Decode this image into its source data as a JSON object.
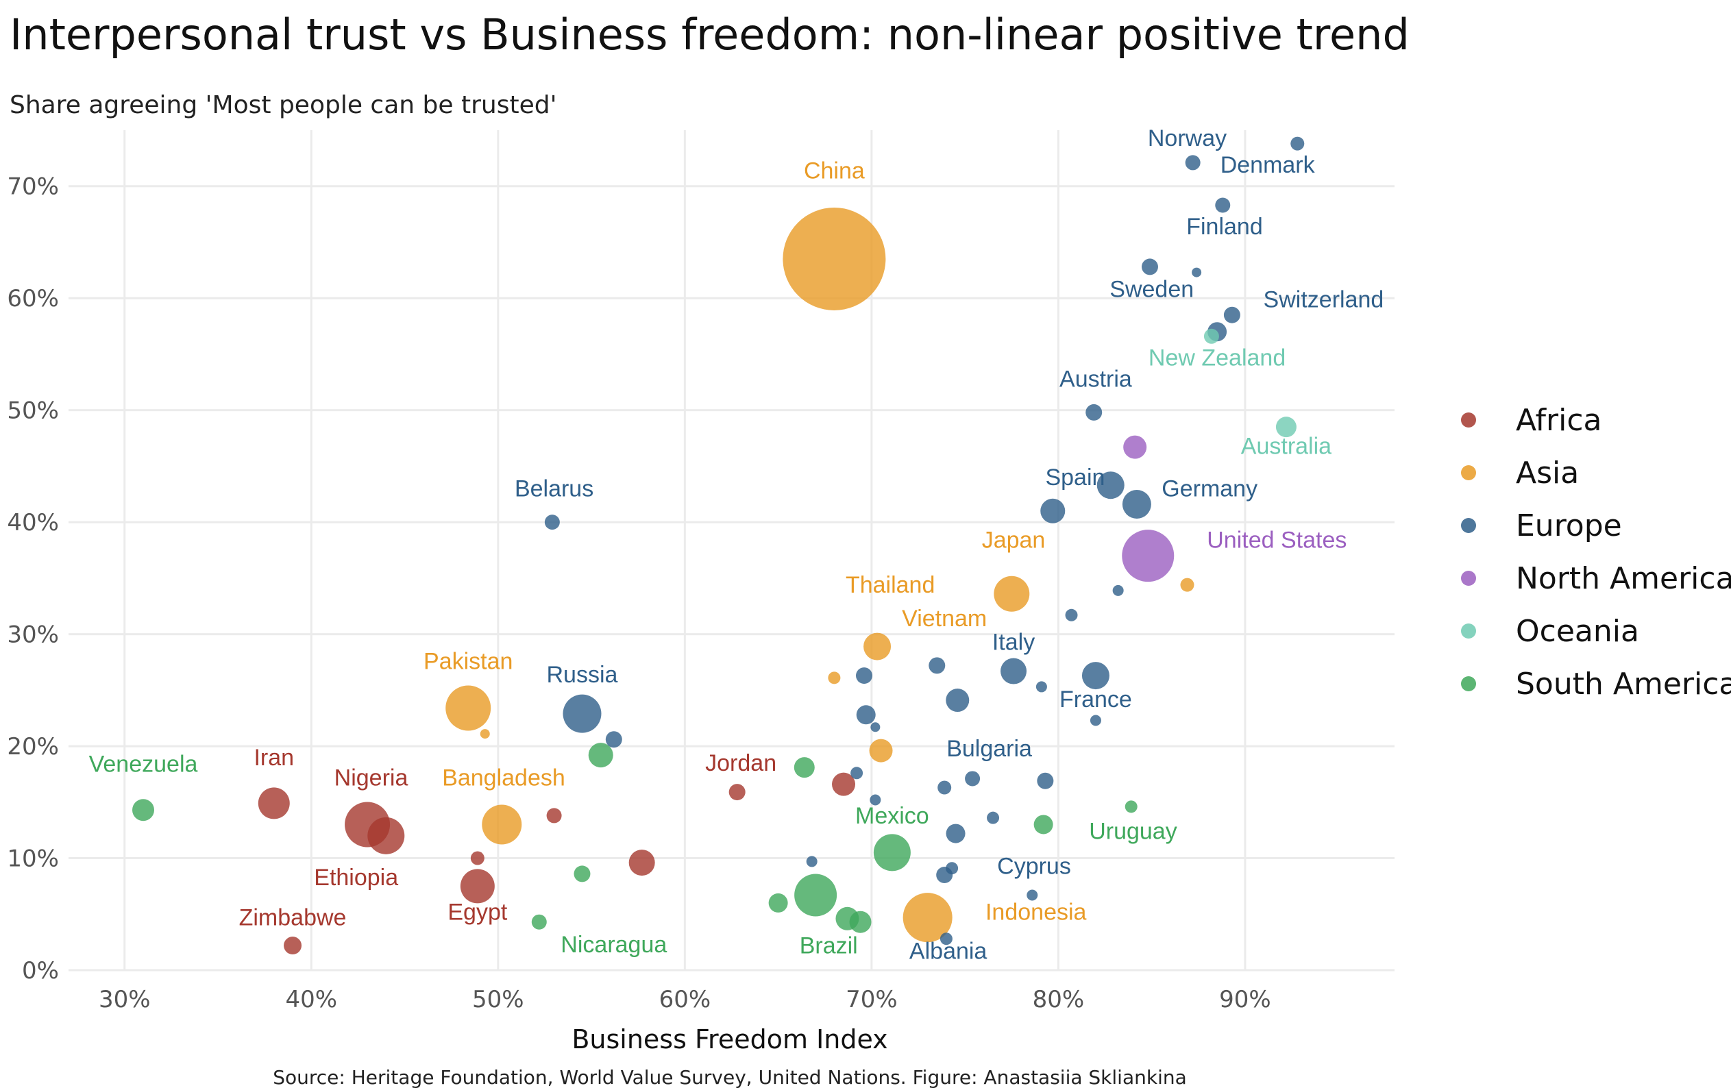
{
  "chart_data": {
    "type": "scatter",
    "title": "Interpersonal trust vs Business freedom: non-linear positive trend",
    "subtitle": "Share agreeing 'Most people can be trusted'",
    "xlabel": "Business Freedom Index",
    "ylabel": "",
    "caption": "Source: Heritage Foundation, World Value Survey, United Nations. Figure: Anastasiia Skliankina",
    "xlim": [
      27,
      98
    ],
    "ylim": [
      0,
      75
    ],
    "x_ticks": [
      30,
      40,
      50,
      60,
      70,
      80,
      90
    ],
    "y_ticks": [
      0,
      10,
      20,
      30,
      40,
      50,
      60,
      70
    ],
    "x_tick_labels": [
      "30%",
      "40%",
      "50%",
      "60%",
      "70%",
      "80%",
      "90%"
    ],
    "y_tick_labels": [
      "0%",
      "10%",
      "20%",
      "30%",
      "40%",
      "50%",
      "60%",
      "70%"
    ],
    "grid": true,
    "size_encoding": "population",
    "legend_position": "right",
    "legend": [
      {
        "name": "Africa",
        "color": "#a5382e"
      },
      {
        "name": "Asia",
        "color": "#e99b26"
      },
      {
        "name": "Europe",
        "color": "#2f5f8a"
      },
      {
        "name": "North America",
        "color": "#9b5fc0"
      },
      {
        "name": "Oceania",
        "color": "#6fcab1"
      },
      {
        "name": "South America",
        "color": "#3fa85b"
      }
    ],
    "points": [
      {
        "label": "China",
        "region": "Asia",
        "x": 68.0,
        "y": 63.5,
        "r": 75
      },
      {
        "label": "Norway",
        "region": "Europe",
        "x": 87.2,
        "y": 72.1,
        "r": 11
      },
      {
        "label": "",
        "region": "Europe",
        "x": 92.8,
        "y": 73.8,
        "r": 10
      },
      {
        "label": "Denmark",
        "region": "Europe",
        "x": 88.8,
        "y": 68.3,
        "r": 11
      },
      {
        "label": "Finland",
        "region": "Europe",
        "x": 84.9,
        "y": 62.8,
        "r": 12
      },
      {
        "label": "",
        "region": "Europe",
        "x": 87.4,
        "y": 62.3,
        "r": 7
      },
      {
        "label": "Switzerland",
        "region": "Europe",
        "x": 89.3,
        "y": 58.5,
        "r": 12
      },
      {
        "label": "Sweden",
        "region": "Europe",
        "x": 88.5,
        "y": 57.0,
        "r": 14
      },
      {
        "label": "New Zealand",
        "region": "Oceania",
        "x": 88.2,
        "y": 56.6,
        "r": 11
      },
      {
        "label": "Austria",
        "region": "Europe",
        "x": 81.9,
        "y": 49.8,
        "r": 12
      },
      {
        "label": "Australia",
        "region": "Oceania",
        "x": 92.2,
        "y": 48.5,
        "r": 15
      },
      {
        "label": "",
        "region": "North America",
        "x": 84.1,
        "y": 46.7,
        "r": 17
      },
      {
        "label": "Spain",
        "region": "Europe",
        "x": 82.8,
        "y": 43.3,
        "r": 20
      },
      {
        "label": "Germany",
        "region": "Europe",
        "x": 84.2,
        "y": 41.6,
        "r": 21
      },
      {
        "label": "",
        "region": "Europe",
        "x": 79.7,
        "y": 41.0,
        "r": 18
      },
      {
        "label": "Belarus",
        "region": "Europe",
        "x": 52.9,
        "y": 40.0,
        "r": 11
      },
      {
        "label": "United States",
        "region": "North America",
        "x": 84.8,
        "y": 37.0,
        "r": 38
      },
      {
        "label": "Japan",
        "region": "Asia",
        "x": 77.5,
        "y": 33.6,
        "r": 26
      },
      {
        "label": "",
        "region": "Asia",
        "x": 86.9,
        "y": 34.4,
        "r": 10
      },
      {
        "label": "",
        "region": "Europe",
        "x": 83.2,
        "y": 33.9,
        "r": 8
      },
      {
        "label": "",
        "region": "Europe",
        "x": 80.7,
        "y": 31.7,
        "r": 9
      },
      {
        "label": "Thailand",
        "region": "Asia",
        "x": 70.3,
        "y": 28.9,
        "r": 20
      },
      {
        "label": "Italy",
        "region": "Europe",
        "x": 77.6,
        "y": 26.7,
        "r": 19
      },
      {
        "label": "France",
        "region": "Europe",
        "x": 82.0,
        "y": 26.3,
        "r": 20
      },
      {
        "label": "",
        "region": "Europe",
        "x": 73.5,
        "y": 27.2,
        "r": 12
      },
      {
        "label": "",
        "region": "Europe",
        "x": 69.6,
        "y": 26.3,
        "r": 12
      },
      {
        "label": "",
        "region": "Asia",
        "x": 68.0,
        "y": 26.1,
        "r": 9
      },
      {
        "label": "",
        "region": "Europe",
        "x": 79.1,
        "y": 25.3,
        "r": 8
      },
      {
        "label": "",
        "region": "Europe",
        "x": 74.6,
        "y": 24.1,
        "r": 17
      },
      {
        "label": "Pakistan",
        "region": "Asia",
        "x": 48.4,
        "y": 23.4,
        "r": 33
      },
      {
        "label": "Russia",
        "region": "Europe",
        "x": 54.5,
        "y": 22.9,
        "r": 28
      },
      {
        "label": "",
        "region": "Asia",
        "x": 49.3,
        "y": 21.1,
        "r": 7
      },
      {
        "label": "",
        "region": "Europe",
        "x": 69.7,
        "y": 22.8,
        "r": 14
      },
      {
        "label": "",
        "region": "Europe",
        "x": 70.2,
        "y": 21.7,
        "r": 7
      },
      {
        "label": "",
        "region": "Europe",
        "x": 82.0,
        "y": 22.3,
        "r": 8
      },
      {
        "label": "",
        "region": "Europe",
        "x": 56.2,
        "y": 20.6,
        "r": 12
      },
      {
        "label": "",
        "region": "South America",
        "x": 55.5,
        "y": 19.2,
        "r": 18
      },
      {
        "label": "",
        "region": "Asia",
        "x": 70.5,
        "y": 19.6,
        "r": 17
      },
      {
        "label": "Vietnam",
        "region": "Asia",
        "x": 70.3,
        "y": 28.9,
        "r": 0
      },
      {
        "label": "Bulgaria",
        "region": "Europe",
        "x": 75.4,
        "y": 17.1,
        "r": 11
      },
      {
        "label": "",
        "region": "Europe",
        "x": 79.3,
        "y": 16.9,
        "r": 12
      },
      {
        "label": "",
        "region": "Europe",
        "x": 69.2,
        "y": 17.6,
        "r": 9
      },
      {
        "label": "",
        "region": "South America",
        "x": 66.4,
        "y": 18.1,
        "r": 15
      },
      {
        "label": "Jordan",
        "region": "Africa",
        "x": 62.8,
        "y": 15.9,
        "r": 12
      },
      {
        "label": "",
        "region": "Africa",
        "x": 68.5,
        "y": 16.6,
        "r": 17
      },
      {
        "label": "",
        "region": "Europe",
        "x": 73.9,
        "y": 16.3,
        "r": 10
      },
      {
        "label": "",
        "region": "Europe",
        "x": 70.2,
        "y": 15.2,
        "r": 8
      },
      {
        "label": "Venezuela",
        "region": "South America",
        "x": 31.0,
        "y": 14.3,
        "r": 16
      },
      {
        "label": "Iran",
        "region": "Africa",
        "x": 38.0,
        "y": 14.9,
        "r": 23
      },
      {
        "label": "Nigeria",
        "region": "Africa",
        "x": 43.0,
        "y": 13.0,
        "r": 33
      },
      {
        "label": "Ethiopia",
        "region": "Africa",
        "x": 44.0,
        "y": 12.0,
        "r": 27
      },
      {
        "label": "Bangladesh",
        "region": "Asia",
        "x": 50.2,
        "y": 13.0,
        "r": 29
      },
      {
        "label": "",
        "region": "Africa",
        "x": 53.0,
        "y": 13.8,
        "r": 11
      },
      {
        "label": "",
        "region": "South America",
        "x": 83.9,
        "y": 14.6,
        "r": 9
      },
      {
        "label": "",
        "region": "Europe",
        "x": 76.5,
        "y": 13.6,
        "r": 9
      },
      {
        "label": "Uruguay",
        "region": "South America",
        "x": 79.2,
        "y": 13.0,
        "r": 14
      },
      {
        "label": "",
        "region": "Europe",
        "x": 74.5,
        "y": 12.2,
        "r": 14
      },
      {
        "label": "Mexico",
        "region": "South America",
        "x": 71.1,
        "y": 10.5,
        "r": 27
      },
      {
        "label": "",
        "region": "Africa",
        "x": 48.9,
        "y": 10.0,
        "r": 10
      },
      {
        "label": "",
        "region": "Africa",
        "x": 57.7,
        "y": 9.6,
        "r": 19
      },
      {
        "label": "",
        "region": "South America",
        "x": 54.5,
        "y": 8.6,
        "r": 12
      },
      {
        "label": "",
        "region": "Europe",
        "x": 66.8,
        "y": 9.7,
        "r": 8
      },
      {
        "label": "Cyprus",
        "region": "Europe",
        "x": 74.3,
        "y": 9.1,
        "r": 9
      },
      {
        "label": "",
        "region": "Europe",
        "x": 73.9,
        "y": 8.5,
        "r": 12
      },
      {
        "label": "Egypt",
        "region": "Africa",
        "x": 48.9,
        "y": 7.5,
        "r": 25
      },
      {
        "label": "Brazil",
        "region": "South America",
        "x": 67.0,
        "y": 6.7,
        "r": 31
      },
      {
        "label": "",
        "region": "South America",
        "x": 65.0,
        "y": 6.0,
        "r": 14
      },
      {
        "label": "",
        "region": "Europe",
        "x": 78.6,
        "y": 6.7,
        "r": 8
      },
      {
        "label": "Indonesia",
        "region": "Asia",
        "x": 73.0,
        "y": 4.7,
        "r": 36
      },
      {
        "label": "",
        "region": "South America",
        "x": 68.7,
        "y": 4.6,
        "r": 17
      },
      {
        "label": "",
        "region": "South America",
        "x": 69.4,
        "y": 4.3,
        "r": 16
      },
      {
        "label": "Nicaragua",
        "region": "South America",
        "x": 52.2,
        "y": 4.3,
        "r": 11
      },
      {
        "label": "Albania",
        "region": "Europe",
        "x": 74.0,
        "y": 2.8,
        "r": 9
      },
      {
        "label": "Zimbabwe",
        "region": "Africa",
        "x": 39.0,
        "y": 2.2,
        "r": 13
      }
    ],
    "labels": [
      {
        "text": "China",
        "region": "Asia",
        "x": 68.0,
        "y": 70.7,
        "anchor": "middle"
      },
      {
        "text": "Norway",
        "region": "Europe",
        "x": 86.9,
        "y": 73.6,
        "anchor": "middle"
      },
      {
        "text": "Denmark",
        "region": "Europe",
        "x": 91.2,
        "y": 71.2,
        "anchor": "middle"
      },
      {
        "text": "Finland",
        "region": "Europe",
        "x": 88.9,
        "y": 65.7,
        "anchor": "middle"
      },
      {
        "text": "Sweden",
        "region": "Europe",
        "x": 85.0,
        "y": 60.1,
        "anchor": "middle"
      },
      {
        "text": "Switzerland",
        "region": "Europe",
        "x": 94.2,
        "y": 59.2,
        "anchor": "middle"
      },
      {
        "text": "New Zealand",
        "region": "Oceania",
        "x": 88.5,
        "y": 54.0,
        "anchor": "middle"
      },
      {
        "text": "Austria",
        "region": "Europe",
        "x": 82.0,
        "y": 52.1,
        "anchor": "middle"
      },
      {
        "text": "Australia",
        "region": "Oceania",
        "x": 92.2,
        "y": 46.1,
        "anchor": "middle"
      },
      {
        "text": "Spain",
        "region": "Europe",
        "x": 80.9,
        "y": 43.3,
        "anchor": "middle"
      },
      {
        "text": "Germany",
        "region": "Europe",
        "x": 88.1,
        "y": 42.3,
        "anchor": "middle"
      },
      {
        "text": "Belarus",
        "region": "Europe",
        "x": 53.0,
        "y": 42.3,
        "anchor": "middle"
      },
      {
        "text": "Japan",
        "region": "Asia",
        "x": 77.6,
        "y": 37.7,
        "anchor": "middle"
      },
      {
        "text": "United States",
        "region": "North America",
        "x": 91.7,
        "y": 37.7,
        "anchor": "middle"
      },
      {
        "text": "Thailand",
        "region": "Asia",
        "x": 71.0,
        "y": 33.7,
        "anchor": "middle"
      },
      {
        "text": "Vietnam",
        "region": "Asia",
        "x": 73.9,
        "y": 30.7,
        "anchor": "middle"
      },
      {
        "text": "Italy",
        "region": "Europe",
        "x": 77.6,
        "y": 28.6,
        "anchor": "middle"
      },
      {
        "text": "Pakistan",
        "region": "Asia",
        "x": 48.4,
        "y": 26.9,
        "anchor": "middle"
      },
      {
        "text": "Russia",
        "region": "Europe",
        "x": 54.5,
        "y": 25.7,
        "anchor": "middle"
      },
      {
        "text": "France",
        "region": "Europe",
        "x": 82.0,
        "y": 23.5,
        "anchor": "middle"
      },
      {
        "text": "Bulgaria",
        "region": "Europe",
        "x": 76.3,
        "y": 19.1,
        "anchor": "middle"
      },
      {
        "text": "Venezuela",
        "region": "South America",
        "x": 31.0,
        "y": 17.7,
        "anchor": "middle"
      },
      {
        "text": "Iran",
        "region": "Africa",
        "x": 38.0,
        "y": 18.3,
        "anchor": "middle"
      },
      {
        "text": "Nigeria",
        "region": "Africa",
        "x": 43.2,
        "y": 16.5,
        "anchor": "middle"
      },
      {
        "text": "Jordan",
        "region": "Africa",
        "x": 63.0,
        "y": 17.8,
        "anchor": "middle"
      },
      {
        "text": "Bangladesh",
        "region": "Asia",
        "x": 50.3,
        "y": 16.5,
        "anchor": "middle"
      },
      {
        "text": "Mexico",
        "region": "South America",
        "x": 71.1,
        "y": 13.1,
        "anchor": "middle"
      },
      {
        "text": "Uruguay",
        "region": "South America",
        "x": 84.0,
        "y": 11.7,
        "anchor": "middle"
      },
      {
        "text": "Cyprus",
        "region": "Europe",
        "x": 78.7,
        "y": 8.6,
        "anchor": "middle"
      },
      {
        "text": "Ethiopia",
        "region": "Africa",
        "x": 42.4,
        "y": 7.6,
        "anchor": "middle"
      },
      {
        "text": "Egypt",
        "region": "Africa",
        "x": 48.9,
        "y": 4.5,
        "anchor": "middle"
      },
      {
        "text": "Indonesia",
        "region": "Asia",
        "x": 78.8,
        "y": 4.5,
        "anchor": "middle"
      },
      {
        "text": "Zimbabwe",
        "region": "Africa",
        "x": 39.0,
        "y": 4.0,
        "anchor": "middle"
      },
      {
        "text": "Nicaragua",
        "region": "South America",
        "x": 56.2,
        "y": 1.6,
        "anchor": "middle"
      },
      {
        "text": "Brazil",
        "region": "South America",
        "x": 67.7,
        "y": 1.5,
        "anchor": "middle"
      },
      {
        "text": "Albania",
        "region": "Europe",
        "x": 74.1,
        "y": 1.0,
        "anchor": "middle"
      }
    ]
  }
}
